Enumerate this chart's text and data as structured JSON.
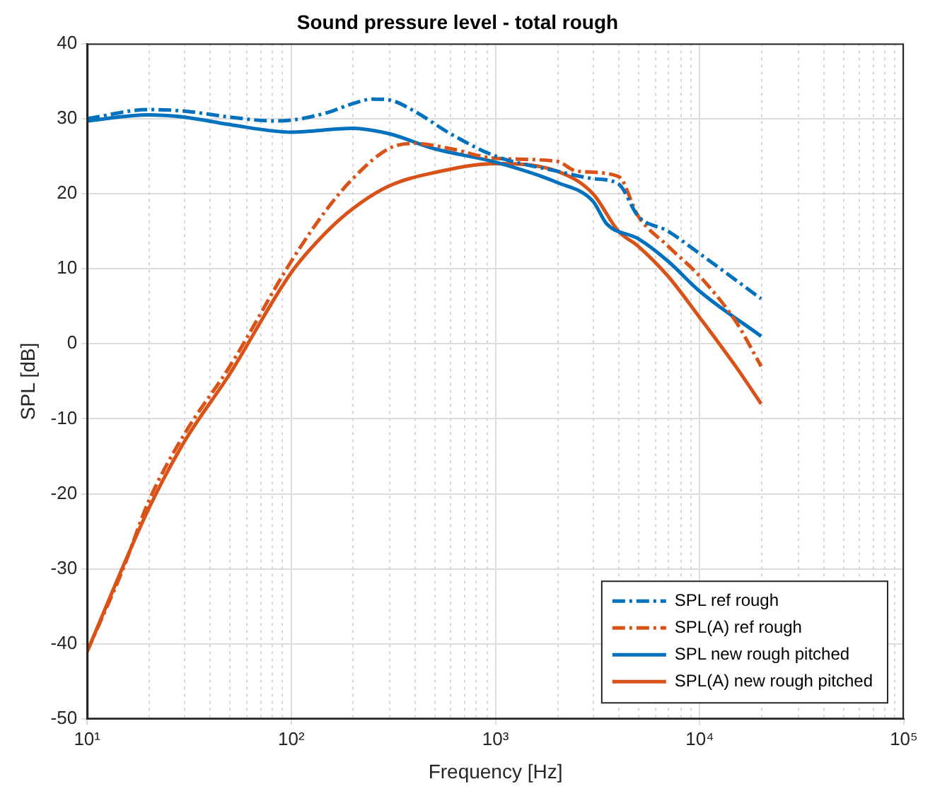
{
  "chart_data": {
    "type": "line",
    "title": "Sound pressure level - total rough",
    "xlabel": "Frequency [Hz]",
    "ylabel": "SPL [dB]",
    "log": "x",
    "xlim": [
      10,
      100000
    ],
    "xticks": [
      {
        "value": 10,
        "label": "10¹"
      },
      {
        "value": 100,
        "label": "10²"
      },
      {
        "value": 1000,
        "label": "10³"
      },
      {
        "value": 10000,
        "label": "10⁴"
      },
      {
        "value": 100000,
        "label": "10⁵"
      }
    ],
    "ylim": [
      -50,
      40
    ],
    "yticks": [
      -50,
      -40,
      -30,
      -20,
      -10,
      0,
      10,
      20,
      30,
      40
    ],
    "grid": true,
    "legend": "bottom right",
    "marker": "none",
    "series": [
      {
        "name": "SPL ref rough",
        "color": "#0072bd",
        "line_style": "dashdot",
        "x": [
          10,
          20,
          30,
          50,
          80,
          100,
          150,
          200,
          250,
          300,
          400,
          600,
          1000,
          2000,
          3000,
          4000,
          5000,
          7000,
          10000,
          20000
        ],
        "values": [
          30,
          31.2,
          31,
          30.2,
          29.7,
          29.8,
          30.8,
          32,
          32.6,
          32.5,
          31,
          28,
          25,
          23,
          22,
          21.3,
          17,
          15,
          12,
          6
        ]
      },
      {
        "name": "SPL(A) ref rough",
        "color": "#d95319",
        "line_style": "dashdot",
        "x": [
          10,
          15,
          20,
          30,
          50,
          100,
          150,
          200,
          300,
          400,
          600,
          1000,
          2000,
          2500,
          4000,
          5000,
          7000,
          10000,
          15000,
          20000
        ],
        "values": [
          -41,
          -30,
          -21,
          -12,
          -3,
          11,
          18,
          22,
          26,
          26.7,
          26,
          24.7,
          24.3,
          23,
          22.3,
          17,
          13,
          9,
          3,
          -3
        ]
      },
      {
        "name": "SPL new rough pitched",
        "color": "#0072bd",
        "line_style": "solid",
        "x": [
          10,
          20,
          30,
          50,
          100,
          200,
          300,
          500,
          1000,
          2000,
          3000,
          3500,
          5000,
          7000,
          10000,
          20000
        ],
        "values": [
          29.7,
          30.5,
          30.2,
          29.2,
          28.2,
          28.7,
          28,
          26,
          24.2,
          21.5,
          19,
          16,
          14,
          11,
          7,
          1
        ]
      },
      {
        "name": "SPL(A) new rough pitched",
        "color": "#d95319",
        "line_style": "solid",
        "x": [
          10,
          20,
          30,
          50,
          100,
          150,
          200,
          300,
          500,
          1000,
          2000,
          3000,
          4000,
          5000,
          7000,
          10000,
          15000,
          20000
        ],
        "values": [
          -41,
          -22,
          -13,
          -4,
          9.5,
          15,
          18,
          21,
          22.8,
          24,
          23,
          20,
          15,
          13,
          9,
          3.5,
          -3,
          -8
        ]
      }
    ]
  }
}
